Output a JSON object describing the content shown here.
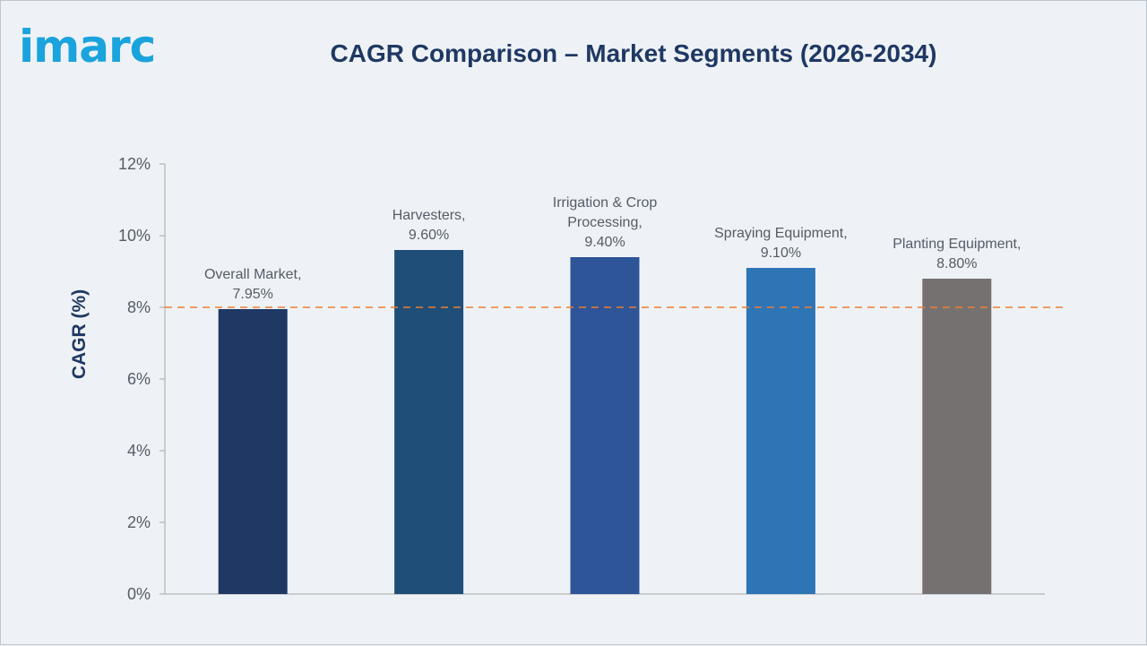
{
  "logo": {
    "text": "imarc",
    "color": "#1aa3dc"
  },
  "chart_data": {
    "type": "bar",
    "title": "CAGR Comparison – Market Segments (2026-2034)",
    "xlabel": "",
    "ylabel": "CAGR (%)",
    "ylim": [
      0,
      12
    ],
    "yticks": [
      0,
      2,
      4,
      6,
      8,
      10,
      12
    ],
    "ytick_labels": [
      "0%",
      "2%",
      "4%",
      "6%",
      "8%",
      "10%",
      "12%"
    ],
    "categories": [
      "Overall Market",
      "Harvesters",
      "Irrigation & Crop Processing",
      "Spraying Equipment",
      "Planting Equipment"
    ],
    "values": [
      7.95,
      9.6,
      9.4,
      9.1,
      8.8
    ],
    "data_labels": [
      [
        "Overall Market,",
        "7.95%"
      ],
      [
        "Harvesters,",
        "9.60%"
      ],
      [
        "Irrigation & Crop",
        "Processing,",
        "9.40%"
      ],
      [
        "Spraying Equipment,",
        "9.10%"
      ],
      [
        "Planting Equipment,",
        "8.80%"
      ]
    ],
    "bar_colors": [
      "#1f3864",
      "#1f4e79",
      "#2e5597",
      "#2e75b6",
      "#767171"
    ],
    "reference_line": {
      "value": 8,
      "style": "dashed",
      "color": "#ed7d31"
    },
    "grid": false,
    "legend": "none"
  },
  "colors": {
    "title": "#1f3864",
    "axis": "#a6a6a6"
  }
}
